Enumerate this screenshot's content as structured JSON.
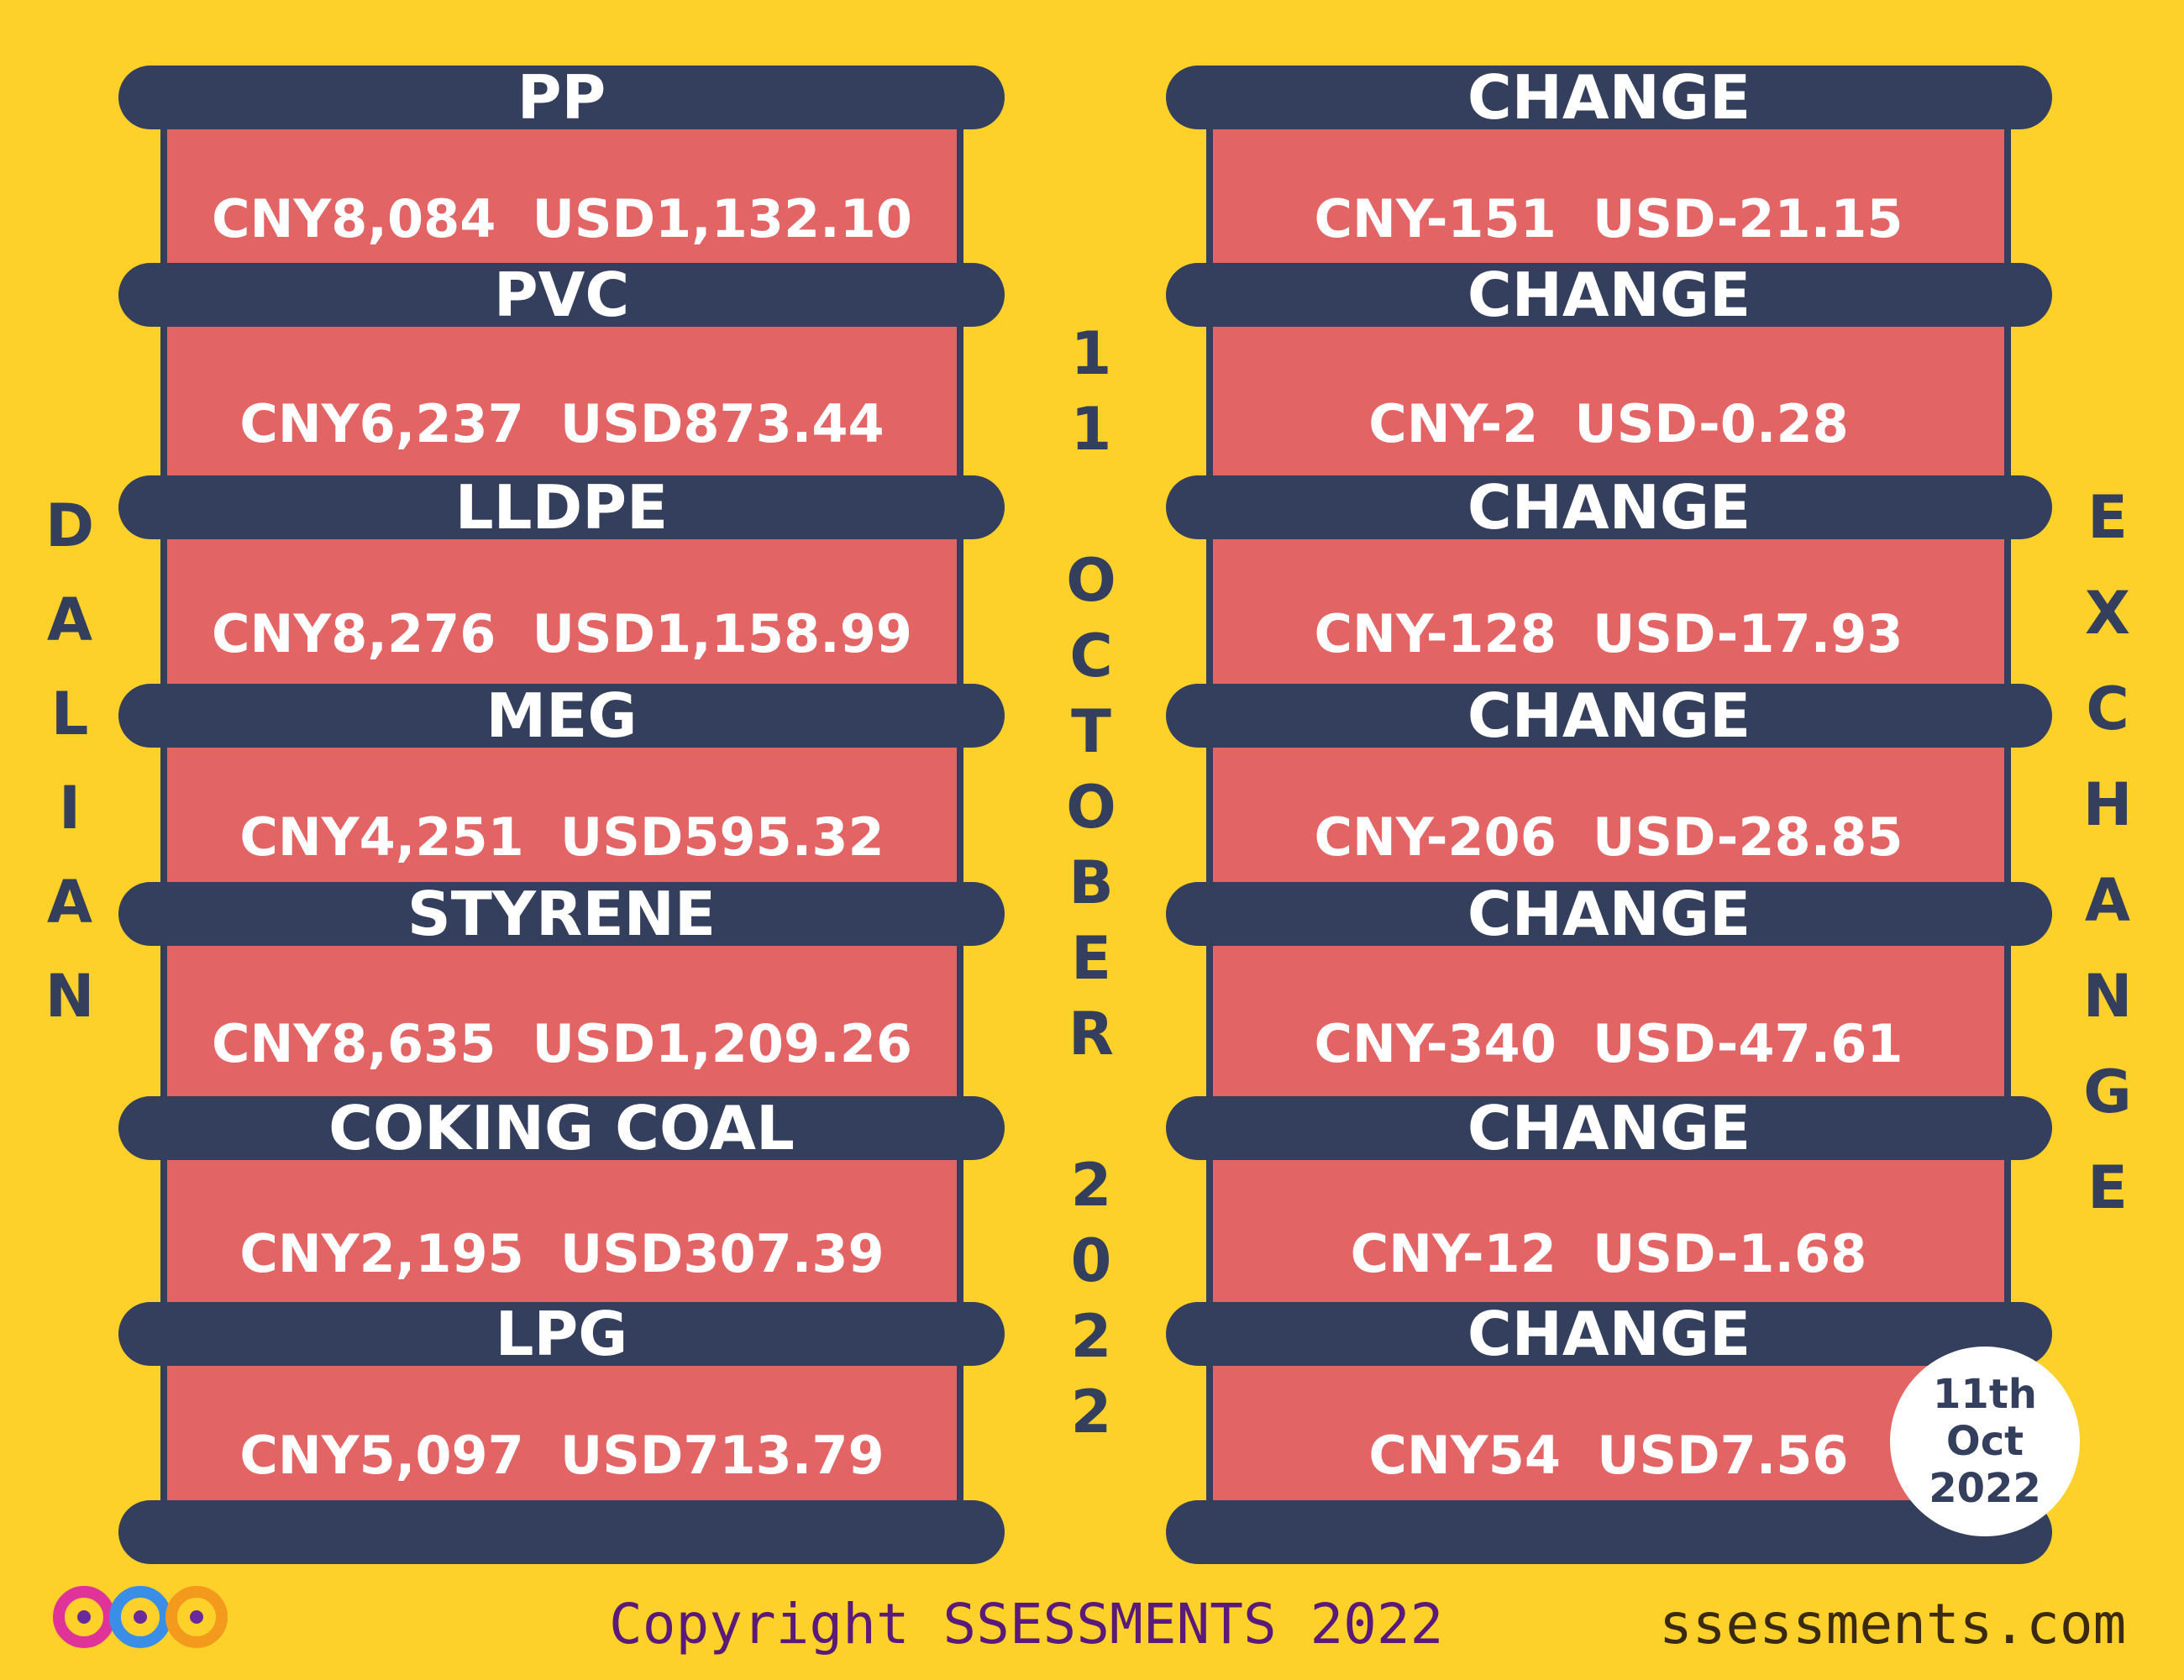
{
  "side_left": "DALIAN",
  "side_right": "EXCHANGE",
  "center_date": "11 OCTOBER 2022",
  "rows": [
    {
      "name": "PP",
      "price": "CNY8,084  USD1,132.10",
      "change_label": "CHANGE",
      "change": "CNY-151  USD-21.15"
    },
    {
      "name": "PVC",
      "price": "CNY6,237  USD873.44",
      "change_label": "CHANGE",
      "change": "CNY-2  USD-0.28"
    },
    {
      "name": "LLDPE",
      "price": "CNY8,276  USD1,158.99",
      "change_label": "CHANGE",
      "change": "CNY-128  USD-17.93"
    },
    {
      "name": "MEG",
      "price": "CNY4,251  USD595.32",
      "change_label": "CHANGE",
      "change": "CNY-206  USD-28.85"
    },
    {
      "name": "STYRENE",
      "price": "CNY8,635  USD1,209.26",
      "change_label": "CHANGE",
      "change": "CNY-340  USD-47.61"
    },
    {
      "name": "COKING COAL",
      "price": "CNY2,195  USD307.39",
      "change_label": "CHANGE",
      "change": "CNY-12  USD-1.68"
    },
    {
      "name": "LPG",
      "price": "CNY5,097  USD713.79",
      "change_label": "CHANGE",
      "change": "CNY54  USD7.56"
    }
  ],
  "badge": [
    "11th",
    "Oct",
    "2022"
  ],
  "footer": {
    "copyright": "Copyright SSESSMENTS 2022",
    "website": "ssessments.com"
  }
}
